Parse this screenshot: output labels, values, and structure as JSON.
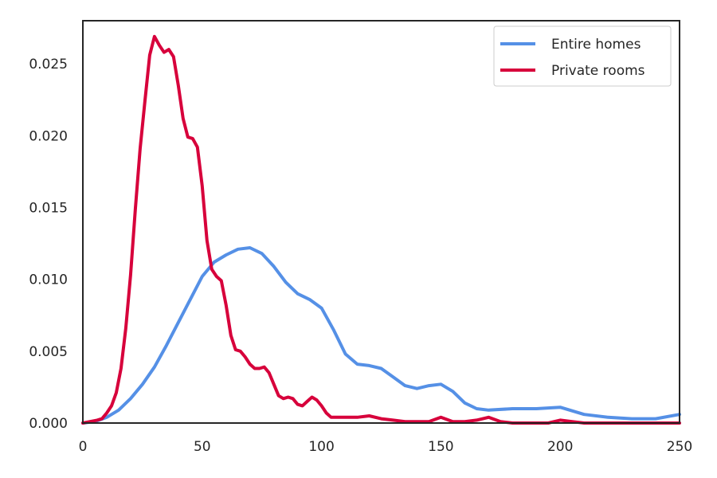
{
  "chart_data": {
    "type": "line",
    "title": "",
    "xlabel": "",
    "ylabel": "",
    "xlim": [
      0,
      250
    ],
    "ylim": [
      0,
      0.028
    ],
    "x_ticks": [
      0,
      50,
      100,
      150,
      200,
      250
    ],
    "x_tick_labels": [
      "0",
      "50",
      "100",
      "150",
      "200",
      "250"
    ],
    "y_ticks": [
      0,
      0.005,
      0.01,
      0.015,
      0.02,
      0.025
    ],
    "y_tick_labels": [
      "0.000",
      "0.005",
      "0.010",
      "0.015",
      "0.020",
      "0.025"
    ],
    "grid": false,
    "legend_position": "top-right",
    "series": [
      {
        "name": "Entire homes",
        "color": "#5590e6",
        "x": [
          0,
          5,
          10,
          15,
          20,
          25,
          30,
          35,
          40,
          45,
          50,
          55,
          60,
          65,
          70,
          75,
          80,
          85,
          90,
          95,
          100,
          105,
          110,
          115,
          120,
          125,
          130,
          135,
          140,
          145,
          150,
          155,
          160,
          165,
          170,
          180,
          190,
          200,
          210,
          220,
          230,
          240,
          250
        ],
        "y": [
          0.0,
          0.0001,
          0.0004,
          0.0009,
          0.0017,
          0.0027,
          0.0039,
          0.0054,
          0.007,
          0.0086,
          0.0102,
          0.0112,
          0.0117,
          0.0121,
          0.0122,
          0.0118,
          0.0109,
          0.0098,
          0.009,
          0.0086,
          0.008,
          0.0065,
          0.0048,
          0.0041,
          0.004,
          0.0038,
          0.0032,
          0.0026,
          0.0024,
          0.0026,
          0.0027,
          0.0022,
          0.0014,
          0.001,
          0.0009,
          0.001,
          0.001,
          0.0011,
          0.0006,
          0.0004,
          0.0003,
          0.0003,
          0.0006
        ]
      },
      {
        "name": "Private rooms",
        "color": "#d7003b",
        "x": [
          0,
          3,
          6,
          8,
          10,
          12,
          14,
          16,
          18,
          20,
          22,
          24,
          26,
          28,
          30,
          32,
          34,
          36,
          38,
          40,
          42,
          44,
          46,
          48,
          50,
          52,
          54,
          56,
          58,
          60,
          62,
          64,
          66,
          68,
          70,
          72,
          74,
          76,
          78,
          80,
          82,
          84,
          86,
          88,
          90,
          92,
          94,
          96,
          98,
          100,
          102,
          104,
          106,
          108,
          110,
          115,
          120,
          125,
          130,
          135,
          140,
          145,
          150,
          155,
          160,
          165,
          170,
          175,
          180,
          185,
          190,
          195,
          200,
          205,
          210,
          220,
          230,
          240,
          250
        ],
        "y": [
          0.0,
          0.0001,
          0.0002,
          0.0003,
          0.0007,
          0.0012,
          0.0021,
          0.0038,
          0.0066,
          0.0103,
          0.0149,
          0.0191,
          0.0224,
          0.0256,
          0.0269,
          0.0263,
          0.0258,
          0.026,
          0.0255,
          0.0235,
          0.0212,
          0.0199,
          0.0198,
          0.0192,
          0.0165,
          0.0127,
          0.0107,
          0.0102,
          0.0099,
          0.0082,
          0.0061,
          0.0051,
          0.005,
          0.0046,
          0.0041,
          0.0038,
          0.0038,
          0.0039,
          0.0035,
          0.0027,
          0.0019,
          0.0017,
          0.0018,
          0.0017,
          0.0013,
          0.0012,
          0.0015,
          0.0018,
          0.0016,
          0.0012,
          0.0007,
          0.0004,
          0.0004,
          0.0004,
          0.0004,
          0.0004,
          0.0005,
          0.0003,
          0.0002,
          0.0001,
          0.0001,
          0.0001,
          0.0004,
          0.0001,
          0.0001,
          0.0002,
          0.0004,
          0.0001,
          0.0,
          0.0,
          0.0,
          0.0,
          0.0002,
          0.0001,
          0.0,
          0.0,
          0.0,
          0.0,
          0.0
        ]
      }
    ]
  }
}
